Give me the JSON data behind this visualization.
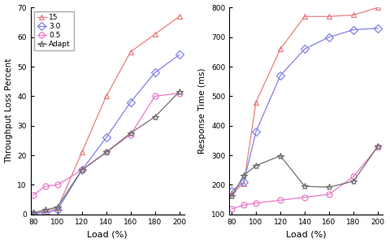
{
  "load": [
    80,
    90,
    100,
    120,
    140,
    160,
    180,
    200
  ],
  "left_ylabel": "Throughput Loss Percent",
  "left_xlabel": "Load (%)",
  "right_ylabel": "Response Time (ms)",
  "right_xlabel": "Load (%)",
  "left_ylim": [
    0,
    70
  ],
  "left_yticks": [
    0,
    10,
    20,
    30,
    40,
    50,
    60,
    70
  ],
  "left_xlim": [
    78,
    204
  ],
  "left_xticks": [
    80,
    100,
    120,
    140,
    160,
    180,
    200
  ],
  "right_ylim": [
    100,
    800
  ],
  "right_yticks": [
    100,
    200,
    300,
    400,
    500,
    600,
    700,
    800
  ],
  "right_xlim": [
    78,
    204
  ],
  "right_xticks": [
    80,
    100,
    120,
    140,
    160,
    180,
    200
  ],
  "series": {
    "15": {
      "left_y": [
        0.5,
        1.0,
        2.0,
        21.0,
        40.0,
        55.0,
        61.0,
        67.0
      ],
      "right_y": [
        170,
        205,
        480,
        660,
        770,
        770,
        775,
        800
      ],
      "color": "#E88080",
      "marker": "^",
      "label": "15"
    },
    "3.0": {
      "left_y": [
        0.2,
        0.5,
        1.5,
        15.0,
        26.0,
        38.0,
        48.0,
        54.0
      ],
      "right_y": [
        178,
        210,
        380,
        570,
        660,
        700,
        725,
        730
      ],
      "color": "#8080E8",
      "marker": "D",
      "label": "3.0"
    },
    "0.5": {
      "left_y": [
        6.5,
        9.5,
        10.0,
        15.0,
        21.0,
        27.0,
        40.0,
        41.0
      ],
      "right_y": [
        118,
        132,
        138,
        148,
        158,
        168,
        228,
        328
      ],
      "color": "#E878C8",
      "marker": "o",
      "label": "0.5"
    },
    "Adapt": {
      "left_y": [
        0.5,
        1.5,
        2.5,
        15.0,
        21.0,
        27.5,
        33.0,
        41.5
      ],
      "right_y": [
        162,
        232,
        265,
        298,
        195,
        192,
        212,
        330
      ],
      "color": "#707070",
      "marker": "*",
      "label": "Adapt"
    }
  },
  "bg_color": "#ffffff",
  "legend_order": [
    "15",
    "3.0",
    "0.5",
    "Adapt"
  ],
  "fig_width": 4.8,
  "fig_height": 2.99,
  "dpi": 100
}
